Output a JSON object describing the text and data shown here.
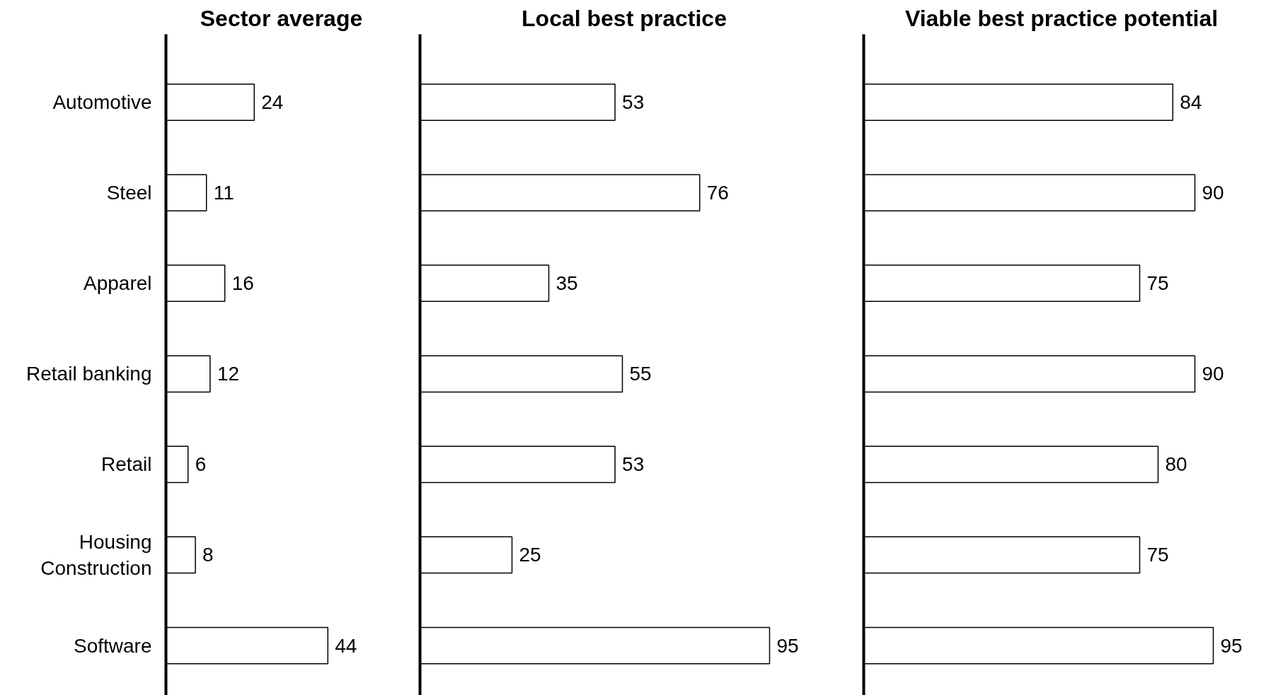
{
  "chart_data": [
    {
      "type": "bar",
      "orientation": "horizontal",
      "title": "Sector average",
      "categories": [
        "Automotive",
        "Steel",
        "Apparel",
        "Retail banking",
        "Retail",
        "Housing Construction",
        "Software"
      ],
      "series": [
        {
          "color": "#ffffff",
          "values": [
            24,
            11,
            16,
            12,
            6,
            8,
            44
          ]
        }
      ],
      "data_labels": true,
      "tick_labels": "y",
      "grid": false
    },
    {
      "type": "bar",
      "orientation": "horizontal",
      "title": "Local best practice",
      "categories": [
        null,
        null,
        null,
        null,
        null,
        null,
        null
      ],
      "series": [
        {
          "color": "#ffffff",
          "values": [
            53,
            76,
            35,
            55,
            53,
            25,
            95
          ]
        }
      ],
      "data_labels": true,
      "tick_labels": false,
      "grid": false
    },
    {
      "type": "bar",
      "orientation": "horizontal",
      "title": "Viable best practice potential",
      "categories": [
        null,
        null,
        null,
        null,
        null,
        null,
        null
      ],
      "series": [
        {
          "color": "#ffffff",
          "values": [
            84,
            90,
            75,
            90,
            80,
            75,
            95
          ]
        }
      ],
      "data_labels": true,
      "tick_labels": false,
      "grid": false
    }
  ]
}
